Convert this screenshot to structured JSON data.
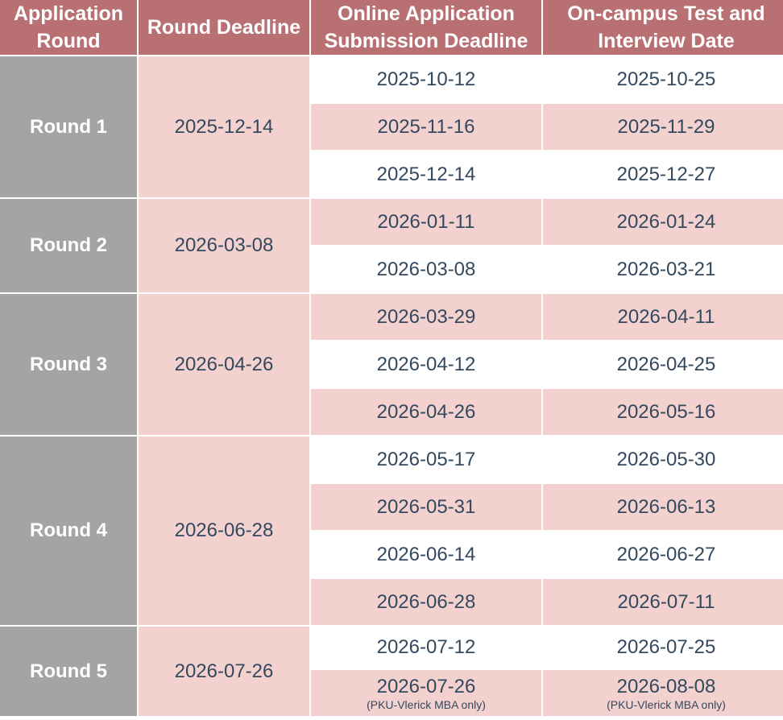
{
  "headers": {
    "round_line1": "Application",
    "round_line2": "Round",
    "deadline": "Round Deadline",
    "online_line1": "Online Application",
    "online_line2": "Submission Deadline",
    "test_line1": "On-campus Test and",
    "test_line2": "Interview Date"
  },
  "rounds": [
    {
      "label": "Round 1",
      "deadline": "2025-12-14",
      "rows": [
        {
          "submission": "2025-10-12",
          "interview": "2025-10-25"
        },
        {
          "submission": "2025-11-16",
          "interview": "2025-11-29"
        },
        {
          "submission": "2025-12-14",
          "interview": "2025-12-27"
        }
      ]
    },
    {
      "label": "Round 2",
      "deadline": "2026-03-08",
      "rows": [
        {
          "submission": "2026-01-11",
          "interview": "2026-01-24"
        },
        {
          "submission": "2026-03-08",
          "interview": "2026-03-21"
        }
      ]
    },
    {
      "label": "Round 3",
      "deadline": "2026-04-26",
      "rows": [
        {
          "submission": "2026-03-29",
          "interview": "2026-04-11"
        },
        {
          "submission": "2026-04-12",
          "interview": "2026-04-25"
        },
        {
          "submission": "2026-04-26",
          "interview": "2026-05-16"
        }
      ]
    },
    {
      "label": "Round 4",
      "deadline": "2026-06-28",
      "rows": [
        {
          "submission": "2026-05-17",
          "interview": "2026-05-30"
        },
        {
          "submission": "2026-05-31",
          "interview": "2026-06-13"
        },
        {
          "submission": "2026-06-14",
          "interview": "2026-06-27"
        },
        {
          "submission": "2026-06-28",
          "interview": "2026-07-11"
        }
      ]
    },
    {
      "label": "Round 5",
      "deadline": "2026-07-26",
      "rows": [
        {
          "submission": "2026-07-12",
          "interview": "2026-07-25"
        },
        {
          "submission": "2026-07-26",
          "interview": "2026-08-08",
          "submission_note": "(PKU-Vlerick MBA only)",
          "interview_note": "(PKU-Vlerick MBA only)"
        }
      ]
    }
  ]
}
